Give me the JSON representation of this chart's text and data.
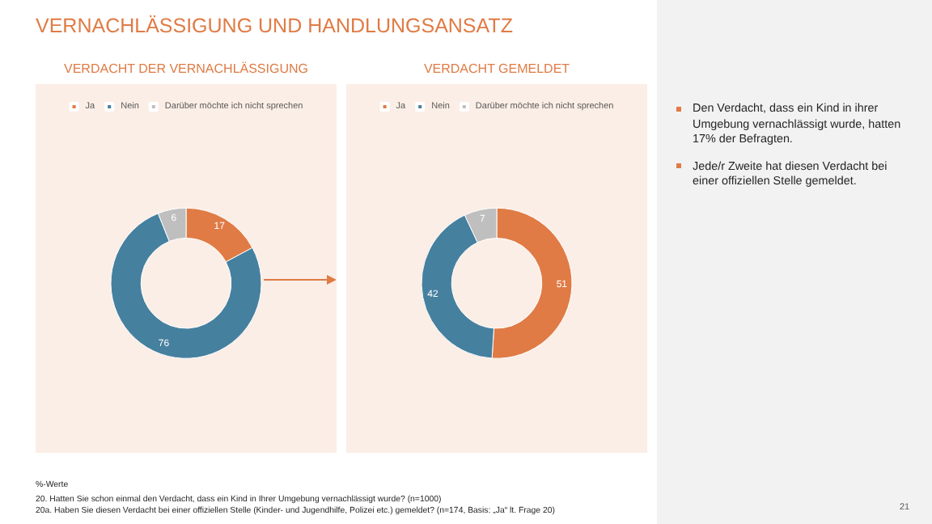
{
  "chart_data": [
    {
      "type": "donut",
      "title": "VERDACHT DER VERNACHLÄSSIGUNG",
      "categories": [
        "Ja",
        "Nein",
        "Darüber möchte ich nicht sprechen"
      ],
      "values": [
        17,
        76,
        6
      ],
      "colors": [
        "#e07b45",
        "#46809f",
        "#bfbfbf"
      ],
      "data_labels": true,
      "legend": "top"
    },
    {
      "type": "donut",
      "title": "VERDACHT GEMELDET",
      "categories": [
        "Ja",
        "Nein",
        "Darüber möchte ich nicht sprechen"
      ],
      "values": [
        51,
        42,
        7
      ],
      "colors": [
        "#e07b45",
        "#46809f",
        "#bfbfbf"
      ],
      "data_labels": true,
      "legend": "top"
    },
    {
      "type": "other",
      "title": "VERNACHLÄSSIGUNG UND HANDLUNGSANSATZ",
      "annotations": [
        "Den Verdacht, dass ein Kind in ihrer Umgebung vernachlässigt wurde, hatten 17% der Befragten.",
        "Jede/r Zweite hat diesen Verdacht bei einer offiziellen Stelle gemeldet.",
        "%-Werte",
        "20. Hatten Sie schon einmal den Verdacht, dass ein Kind in Ihrer Umgebung vernachlässigt wurde? (n=1000)",
        "20a. Haben Sie diesen Verdacht bei einer offiziellen Stelle (Kinder- und Jugendhilfe, Polizei etc.) gemeldet? (n=174, Basis: „Ja“ lt. Frage 20)",
        "21"
      ]
    }
  ]
}
